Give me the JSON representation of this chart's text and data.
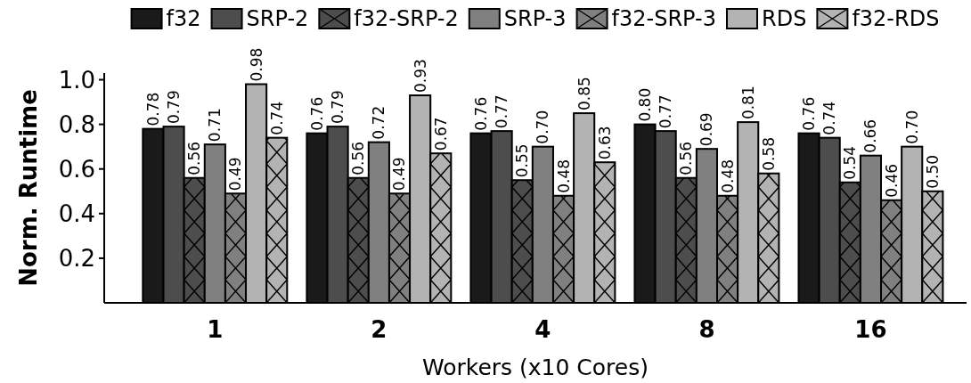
{
  "chart_data": {
    "type": "bar",
    "xlabel": "Workers (x10 Cores)",
    "ylabel": "Norm. Runtime",
    "categories": [
      "1",
      "2",
      "4",
      "8",
      "16"
    ],
    "series": [
      {
        "name": "f32",
        "color": "#1a1a1a",
        "values": [
          0.78,
          0.76,
          0.76,
          0.8,
          0.76
        ],
        "value_labels": [
          "0.78",
          "0.76",
          "0.76",
          "0.80",
          "0.76"
        ]
      },
      {
        "name": "SRP-2",
        "color": "#4d4d4d",
        "values": [
          0.79,
          0.79,
          0.77,
          0.77,
          0.74
        ],
        "value_labels": [
          "0.79",
          "0.79",
          "0.77",
          "0.77",
          "0.74"
        ]
      },
      {
        "name": "f32-SRP-2",
        "color": "#4d4d4d",
        "values": [
          0.56,
          0.56,
          0.55,
          0.56,
          0.54
        ],
        "value_labels": [
          "0.56",
          "0.56",
          "0.55",
          "0.56",
          "0.54"
        ]
      },
      {
        "name": "SRP-3",
        "color": "#808080",
        "values": [
          0.71,
          0.72,
          0.7,
          0.69,
          0.66
        ],
        "value_labels": [
          "0.71",
          "0.72",
          "0.70",
          "0.69",
          "0.66"
        ]
      },
      {
        "name": "f32-SRP-3",
        "color": "#808080",
        "values": [
          0.49,
          0.49,
          0.48,
          0.48,
          0.46
        ],
        "value_labels": [
          "0.49",
          "0.49",
          "0.48",
          "0.48",
          "0.46"
        ]
      },
      {
        "name": "RDS",
        "color": "#b3b3b3",
        "values": [
          0.98,
          0.93,
          0.85,
          0.81,
          0.7
        ],
        "value_labels": [
          "0.98",
          "0.93",
          "0.85",
          "0.81",
          "0.70"
        ]
      },
      {
        "name": "f32-RDS",
        "color": "#b3b3b3",
        "values": [
          0.74,
          0.67,
          0.63,
          0.58,
          0.5
        ],
        "value_labels": [
          "0.74",
          "0.67",
          "0.63",
          "0.58",
          "0.50"
        ]
      }
    ],
    "ylim": [
      0,
      1.03
    ],
    "yticks": [
      0.2,
      0.4,
      0.6,
      0.8,
      {
        "value": 1,
        "label": "1.0"
      }
    ],
    "legend": "top",
    "grid": false
  }
}
